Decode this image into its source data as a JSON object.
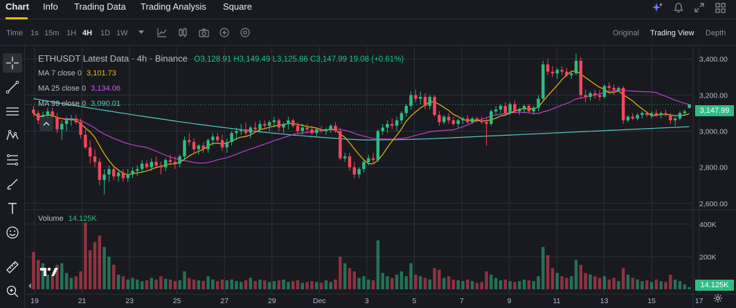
{
  "top_tabs": [
    {
      "label": "Chart",
      "active": true
    },
    {
      "label": "Info",
      "active": false
    },
    {
      "label": "Trading Data",
      "active": false
    },
    {
      "label": "Trading Analysis",
      "active": false
    },
    {
      "label": "Square",
      "active": false
    }
  ],
  "toolbar": {
    "intervals": [
      "Time",
      "1s",
      "15m",
      "1H",
      "4H",
      "1D",
      "1W"
    ],
    "active_interval": "4H",
    "view_options": [
      "Original",
      "Trading View",
      "Depth"
    ],
    "active_view": "Trading View"
  },
  "legend": {
    "title": "ETHUSDT Latest Data · 4h · Binance",
    "open_label": "O",
    "open": "3,128.91",
    "high_label": "H",
    "high": "3,149.49",
    "low_label": "L",
    "low": "3,125.86",
    "close_label": "C",
    "close": "3,147.99",
    "change": "19.08 (+0.61%)",
    "ma7_label": "MA 7 close 0",
    "ma7_value": "3,101.73",
    "ma25_label": "MA 25 close 0",
    "ma25_value": "3,134.06",
    "ma99_label": "MA 99 close 0",
    "ma99_value": "3,090.01",
    "volume_label": "Volume",
    "volume_value": "14.125K"
  },
  "price_axis": [
    "3,400.00",
    "3,200.00",
    "3,000.00",
    "2,800.00",
    "2,600.00"
  ],
  "current_price_tag": "3,147.99",
  "volume_axis": [
    "400K",
    "200K"
  ],
  "volume_tag": "14.125K",
  "time_axis": [
    "19",
    "21",
    "23",
    "25",
    "27",
    "29",
    "Dec",
    "3",
    "5",
    "7",
    "9",
    "11",
    "13",
    "15",
    "17"
  ],
  "colors": {
    "up": "#2ebd85",
    "down": "#f6465d",
    "ma7": "#f0b90b",
    "ma25": "#c53fd1",
    "ma99": "#56c9c5",
    "background": "#181a20",
    "grid": "#2b3139"
  },
  "chart_data": {
    "type": "candlestick",
    "symbol": "ETHUSDT",
    "interval": "4h",
    "ylim": [
      2580,
      3470
    ],
    "volume_ylim": [
      0,
      450000
    ],
    "candles": [
      [
        3120,
        3140,
        3080,
        3100
      ],
      [
        3100,
        3115,
        3040,
        3060
      ],
      [
        3060,
        3110,
        3040,
        3090
      ],
      [
        3090,
        3130,
        3070,
        3110
      ],
      [
        3110,
        3130,
        3060,
        3080
      ],
      [
        3080,
        3100,
        2990,
        3010
      ],
      [
        3010,
        3060,
        2950,
        3040
      ],
      [
        3040,
        3080,
        3000,
        3060
      ],
      [
        3060,
        3090,
        3030,
        3070
      ],
      [
        3070,
        3090,
        3040,
        3050
      ],
      [
        3050,
        3070,
        2960,
        2980
      ],
      [
        2980,
        3010,
        2900,
        2910
      ],
      [
        2910,
        2950,
        2820,
        2860
      ],
      [
        2860,
        2900,
        2800,
        2830
      ],
      [
        2830,
        2850,
        2700,
        2730
      ],
      [
        2730,
        2790,
        2650,
        2760
      ],
      [
        2760,
        2810,
        2720,
        2790
      ],
      [
        2790,
        2810,
        2730,
        2750
      ],
      [
        2750,
        2790,
        2720,
        2770
      ],
      [
        2770,
        2790,
        2720,
        2740
      ],
      [
        2740,
        2790,
        2720,
        2760
      ],
      [
        2760,
        2800,
        2740,
        2780
      ],
      [
        2780,
        2810,
        2750,
        2790
      ],
      [
        2790,
        2840,
        2770,
        2820
      ],
      [
        2820,
        2840,
        2790,
        2800
      ],
      [
        2800,
        2850,
        2780,
        2830
      ],
      [
        2830,
        2860,
        2800,
        2810
      ],
      [
        2810,
        2830,
        2760,
        2800
      ],
      [
        2800,
        2850,
        2780,
        2840
      ],
      [
        2840,
        2870,
        2810,
        2830
      ],
      [
        2830,
        2860,
        2790,
        2820
      ],
      [
        2820,
        2870,
        2800,
        2860
      ],
      [
        2860,
        2970,
        2840,
        2950
      ],
      [
        2950,
        2990,
        2920,
        2940
      ],
      [
        2940,
        2960,
        2880,
        2900
      ],
      [
        2900,
        2930,
        2870,
        2920
      ],
      [
        2920,
        2940,
        2880,
        2900
      ],
      [
        2900,
        2960,
        2880,
        2950
      ],
      [
        2950,
        2990,
        2920,
        2970
      ],
      [
        2970,
        2990,
        2930,
        2950
      ],
      [
        2950,
        2980,
        2890,
        2910
      ],
      [
        2910,
        2960,
        2880,
        2940
      ],
      [
        2940,
        3000,
        2920,
        2990
      ],
      [
        2990,
        3020,
        2950,
        3000
      ],
      [
        3000,
        3040,
        2980,
        3010
      ],
      [
        3010,
        3050,
        2970,
        2990
      ],
      [
        2990,
        3030,
        2960,
        3020
      ],
      [
        3020,
        3050,
        2990,
        3010
      ],
      [
        3010,
        3060,
        2990,
        3040
      ],
      [
        3040,
        3060,
        3010,
        3030
      ],
      [
        3030,
        3060,
        3000,
        3050
      ],
      [
        3050,
        3080,
        3020,
        3060
      ],
      [
        3060,
        3070,
        3000,
        3020
      ],
      [
        3020,
        3050,
        2990,
        3040
      ],
      [
        3040,
        3080,
        3010,
        3060
      ],
      [
        3060,
        3070,
        3020,
        3030
      ],
      [
        3030,
        3050,
        2990,
        3000
      ],
      [
        3000,
        3040,
        2980,
        3020
      ],
      [
        3020,
        3040,
        2990,
        3010
      ],
      [
        3010,
        3030,
        2980,
        2990
      ],
      [
        2990,
        3020,
        2970,
        3010
      ],
      [
        3010,
        3030,
        2990,
        3000
      ],
      [
        3000,
        3020,
        2980,
        3010
      ],
      [
        3010,
        3040,
        2990,
        3030
      ],
      [
        3030,
        3050,
        2990,
        3000
      ],
      [
        3000,
        3020,
        2840,
        2850
      ],
      [
        2850,
        2880,
        2830,
        2860
      ],
      [
        2860,
        2880,
        2780,
        2800
      ],
      [
        2800,
        2830,
        2740,
        2760
      ],
      [
        2760,
        2800,
        2740,
        2790
      ],
      [
        2790,
        2840,
        2770,
        2830
      ],
      [
        2830,
        2870,
        2810,
        2850
      ],
      [
        2850,
        2880,
        2820,
        2840
      ],
      [
        2840,
        3010,
        2830,
        3000
      ],
      [
        3000,
        3040,
        2980,
        3020
      ],
      [
        3020,
        3060,
        2990,
        3040
      ],
      [
        3040,
        3070,
        3010,
        3030
      ],
      [
        3030,
        3080,
        3000,
        3060
      ],
      [
        3060,
        3110,
        3040,
        3100
      ],
      [
        3100,
        3150,
        3080,
        3140
      ],
      [
        3140,
        3220,
        3120,
        3200
      ],
      [
        3200,
        3230,
        3160,
        3180
      ],
      [
        3180,
        3220,
        3150,
        3190
      ],
      [
        3190,
        3210,
        3120,
        3140
      ],
      [
        3140,
        3200,
        3120,
        3190
      ],
      [
        3190,
        3200,
        3080,
        3090
      ],
      [
        3090,
        3110,
        3030,
        3050
      ],
      [
        3050,
        3090,
        3040,
        3080
      ],
      [
        3080,
        3100,
        3040,
        3060
      ],
      [
        3060,
        3080,
        3030,
        3040
      ],
      [
        3040,
        3070,
        3020,
        3060
      ],
      [
        3060,
        3080,
        3040,
        3070
      ],
      [
        3070,
        3090,
        3040,
        3050
      ],
      [
        3050,
        3080,
        3040,
        3070
      ],
      [
        3070,
        3080,
        3050,
        3060
      ],
      [
        3060,
        3080,
        3040,
        3050
      ],
      [
        3050,
        3070,
        2920,
        3040
      ],
      [
        3040,
        3120,
        3030,
        3110
      ],
      [
        3110,
        3140,
        3090,
        3120
      ],
      [
        3120,
        3150,
        3100,
        3140
      ],
      [
        3140,
        3160,
        3090,
        3100
      ],
      [
        3100,
        3160,
        3090,
        3150
      ],
      [
        3150,
        3170,
        3100,
        3110
      ],
      [
        3110,
        3130,
        3090,
        3120
      ],
      [
        3120,
        3150,
        3100,
        3140
      ],
      [
        3140,
        3150,
        3100,
        3110
      ],
      [
        3110,
        3140,
        3090,
        3130
      ],
      [
        3130,
        3200,
        3110,
        3180
      ],
      [
        3180,
        3390,
        3170,
        3370
      ],
      [
        3370,
        3400,
        3310,
        3330
      ],
      [
        3330,
        3360,
        3300,
        3320
      ],
      [
        3320,
        3350,
        3290,
        3340
      ],
      [
        3340,
        3360,
        3310,
        3330
      ],
      [
        3330,
        3350,
        3300,
        3310
      ],
      [
        3310,
        3330,
        3290,
        3320
      ],
      [
        3320,
        3430,
        3310,
        3390
      ],
      [
        3390,
        3410,
        3180,
        3200
      ],
      [
        3200,
        3230,
        3160,
        3190
      ],
      [
        3190,
        3220,
        3170,
        3210
      ],
      [
        3210,
        3230,
        3180,
        3200
      ],
      [
        3200,
        3230,
        3170,
        3190
      ],
      [
        3190,
        3260,
        3180,
        3250
      ],
      [
        3250,
        3270,
        3220,
        3240
      ],
      [
        3240,
        3260,
        3200,
        3230
      ],
      [
        3230,
        3250,
        3220,
        3240
      ],
      [
        3240,
        3250,
        3040,
        3060
      ],
      [
        3060,
        3090,
        3050,
        3080
      ],
      [
        3080,
        3100,
        3060,
        3070
      ],
      [
        3070,
        3100,
        3060,
        3090
      ],
      [
        3090,
        3110,
        3070,
        3100
      ],
      [
        3100,
        3110,
        3080,
        3090
      ],
      [
        3090,
        3110,
        3070,
        3100
      ],
      [
        3100,
        3120,
        3080,
        3090
      ],
      [
        3090,
        3110,
        3070,
        3100
      ],
      [
        3100,
        3120,
        3080,
        3090
      ],
      [
        3090,
        3100,
        3040,
        3060
      ],
      [
        3060,
        3080,
        3030,
        3070
      ],
      [
        3070,
        3110,
        3060,
        3100
      ],
      [
        3100,
        3120,
        3090,
        3110
      ],
      [
        3128.91,
        3149.49,
        3125.86,
        3147.99
      ]
    ],
    "volumes": [
      230000,
      180000,
      160000,
      90000,
      80000,
      150000,
      160000,
      100000,
      70000,
      80000,
      110000,
      410000,
      240000,
      290000,
      330000,
      260000,
      200000,
      150000,
      90000,
      80000,
      60000,
      70000,
      60000,
      50000,
      55000,
      70000,
      60000,
      80000,
      65000,
      60000,
      50000,
      55000,
      110000,
      70000,
      60000,
      55000,
      50000,
      80000,
      60000,
      50000,
      60000,
      55000,
      60000,
      50000,
      45000,
      55000,
      70000,
      50000,
      60000,
      55000,
      45000,
      50000,
      55000,
      60000,
      45000,
      50000,
      55000,
      40000,
      45000,
      50000,
      45000,
      40000,
      55000,
      45000,
      60000,
      200000,
      160000,
      130000,
      110000,
      70000,
      80000,
      60000,
      55000,
      300000,
      100000,
      80000,
      70000,
      90000,
      110000,
      80000,
      160000,
      90000,
      80000,
      70000,
      60000,
      130000,
      120000,
      70000,
      80000,
      60000,
      55000,
      50000,
      60000,
      50000,
      40000,
      45000,
      110000,
      90000,
      70000,
      55000,
      60000,
      50000,
      45000,
      50000,
      60000,
      55000,
      50000,
      80000,
      260000,
      210000,
      130000,
      100000,
      80000,
      70000,
      80000,
      180000,
      150000,
      100000,
      90000,
      80000,
      70000,
      80000,
      60000,
      70000,
      50000,
      130000,
      90000,
      70000,
      60000,
      50000,
      55000,
      45000,
      60000,
      50000,
      45000,
      90000,
      60000,
      50000,
      30000,
      14125
    ],
    "ma": [
      {
        "name": "MA 7 close 0",
        "last": 3101.73
      },
      {
        "name": "MA 25 close 0",
        "last": 3134.06
      },
      {
        "name": "MA 99 close 0",
        "last": 3090.01
      }
    ]
  }
}
